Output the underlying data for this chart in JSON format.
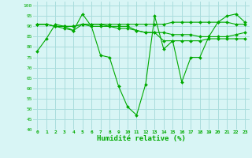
{
  "title": "",
  "xlabel": "Humidité relative (%)",
  "ylabel": "",
  "background_color": "#d8f5f5",
  "grid_color": "#aadddd",
  "line_color": "#00aa00",
  "xlim": [
    -0.5,
    23.5
  ],
  "ylim": [
    40,
    102
  ],
  "yticks": [
    40,
    45,
    50,
    55,
    60,
    65,
    70,
    75,
    80,
    85,
    90,
    95,
    100
  ],
  "xticks": [
    0,
    1,
    2,
    3,
    4,
    5,
    6,
    7,
    8,
    9,
    10,
    11,
    12,
    13,
    14,
    15,
    16,
    17,
    18,
    19,
    20,
    21,
    22,
    23
  ],
  "series": [
    [
      78,
      84,
      91,
      90,
      88,
      96,
      90,
      76,
      75,
      61,
      51,
      47,
      62,
      95,
      79,
      83,
      63,
      75,
      75,
      85,
      92,
      95,
      96,
      92
    ],
    [
      91,
      91,
      90,
      90,
      90,
      91,
      91,
      91,
      91,
      91,
      91,
      91,
      91,
      91,
      91,
      92,
      92,
      92,
      92,
      92,
      92,
      92,
      91,
      91
    ],
    [
      91,
      91,
      90,
      90,
      90,
      91,
      91,
      91,
      90,
      90,
      90,
      88,
      87,
      87,
      87,
      86,
      86,
      86,
      85,
      85,
      85,
      85,
      86,
      87
    ],
    [
      91,
      91,
      90,
      89,
      88,
      91,
      90,
      90,
      90,
      89,
      89,
      88,
      87,
      87,
      83,
      83,
      83,
      83,
      83,
      84,
      84,
      84,
      84,
      84
    ]
  ]
}
